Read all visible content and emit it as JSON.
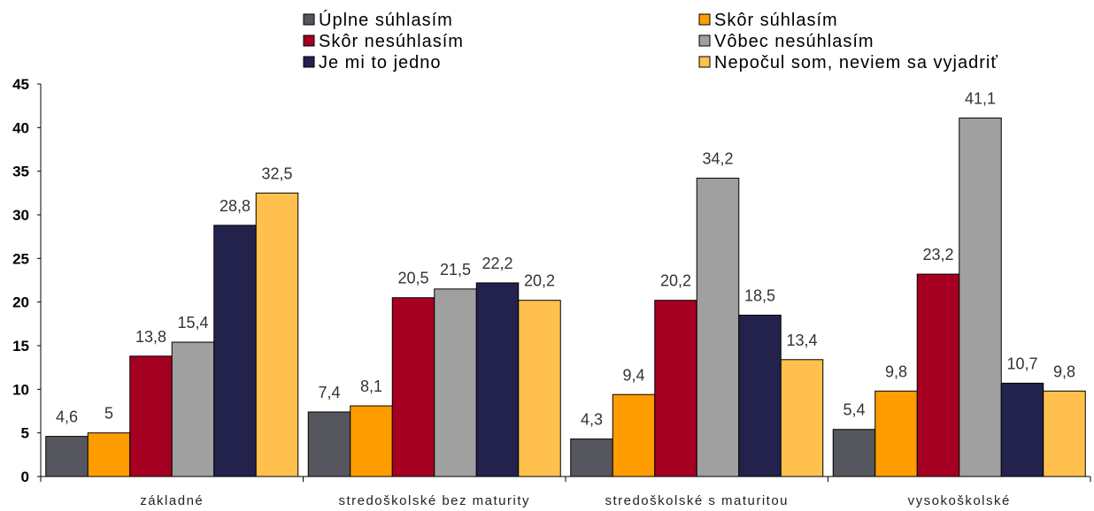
{
  "chart_data": {
    "type": "bar",
    "categories": [
      "základné",
      "stredoškolské bez maturity",
      "stredoškolské s maturitou",
      "vysokoškolské"
    ],
    "series": [
      {
        "name": "Úplne súhlasím",
        "color": "#55565E",
        "values": [
          4.6,
          7.4,
          4.3,
          5.4
        ],
        "labels": [
          "4,6",
          "7,4",
          "4,3",
          "5,4"
        ]
      },
      {
        "name": "Skôr súhlasím",
        "color": "#FF9C00",
        "values": [
          5,
          8.1,
          9.4,
          9.8
        ],
        "labels": [
          "5",
          "8,1",
          "9,4",
          "9,8"
        ]
      },
      {
        "name": "Skôr nesúhlasím",
        "color": "#A50021",
        "values": [
          13.8,
          20.5,
          20.2,
          23.2
        ],
        "labels": [
          "13,8",
          "20,5",
          "20,2",
          "23,2"
        ]
      },
      {
        "name": "Vôbec nesúhlasím",
        "color": "#A0A0A0",
        "values": [
          15.4,
          21.5,
          34.2,
          41.1
        ],
        "labels": [
          "15,4",
          "21,5",
          "34,2",
          "41,1"
        ]
      },
      {
        "name": "Je mi to jedno",
        "color": "#22224D",
        "values": [
          28.8,
          22.2,
          18.5,
          10.7
        ],
        "labels": [
          "28,8",
          "22,2",
          "18,5",
          "10,7"
        ]
      },
      {
        "name": "Nepočul som, neviem sa vyjadriť",
        "color": "#FFC04D",
        "values": [
          32.5,
          20.2,
          13.4,
          9.8
        ],
        "labels": [
          "32,5",
          "20,2",
          "13,4",
          "9,8"
        ]
      }
    ],
    "ylim": [
      0,
      45
    ],
    "yticks": [
      "0",
      "5",
      "10",
      "15",
      "20",
      "25",
      "30",
      "35",
      "40",
      "45"
    ],
    "grid": false,
    "legend_position": "top"
  }
}
